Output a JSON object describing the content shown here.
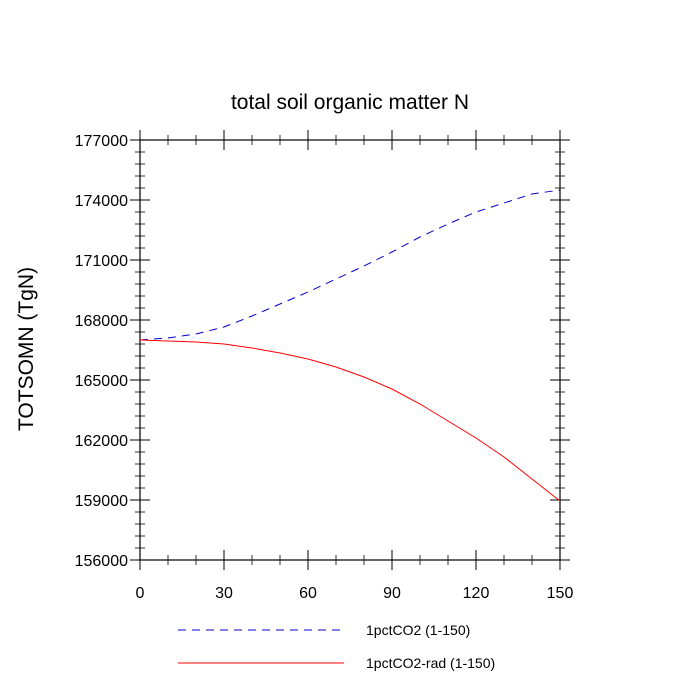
{
  "chart_data": {
    "type": "line",
    "title": "total soil organic matter N",
    "xlabel": "",
    "ylabel": "TOTSOMN  (TgN)",
    "xlim": [
      0,
      150
    ],
    "ylim": [
      156000,
      177000
    ],
    "x_ticks": [
      "0",
      "30",
      "60",
      "90",
      "120",
      "150"
    ],
    "y_ticks": [
      "156000",
      "159000",
      "162000",
      "165000",
      "168000",
      "171000",
      "174000",
      "177000"
    ],
    "grid": false,
    "legend_position": "bottom",
    "x": [
      0,
      10,
      20,
      30,
      40,
      50,
      60,
      70,
      80,
      90,
      100,
      110,
      120,
      130,
      140,
      150
    ],
    "series": [
      {
        "name": "1pctCO2 (1-150)",
        "color": "#0000cc",
        "dash": "dashed",
        "values": [
          167000,
          167100,
          167300,
          167650,
          168200,
          168800,
          169400,
          170050,
          170700,
          171400,
          172150,
          172800,
          173400,
          173850,
          174300,
          174500
        ]
      },
      {
        "name": "1pctCO2-rad (1-150)",
        "color": "#ff0000",
        "dash": "solid",
        "values": [
          167000,
          166950,
          166900,
          166800,
          166600,
          166350,
          166050,
          165650,
          165150,
          164550,
          163800,
          162950,
          162100,
          161150,
          160050,
          158950
        ]
      }
    ]
  }
}
